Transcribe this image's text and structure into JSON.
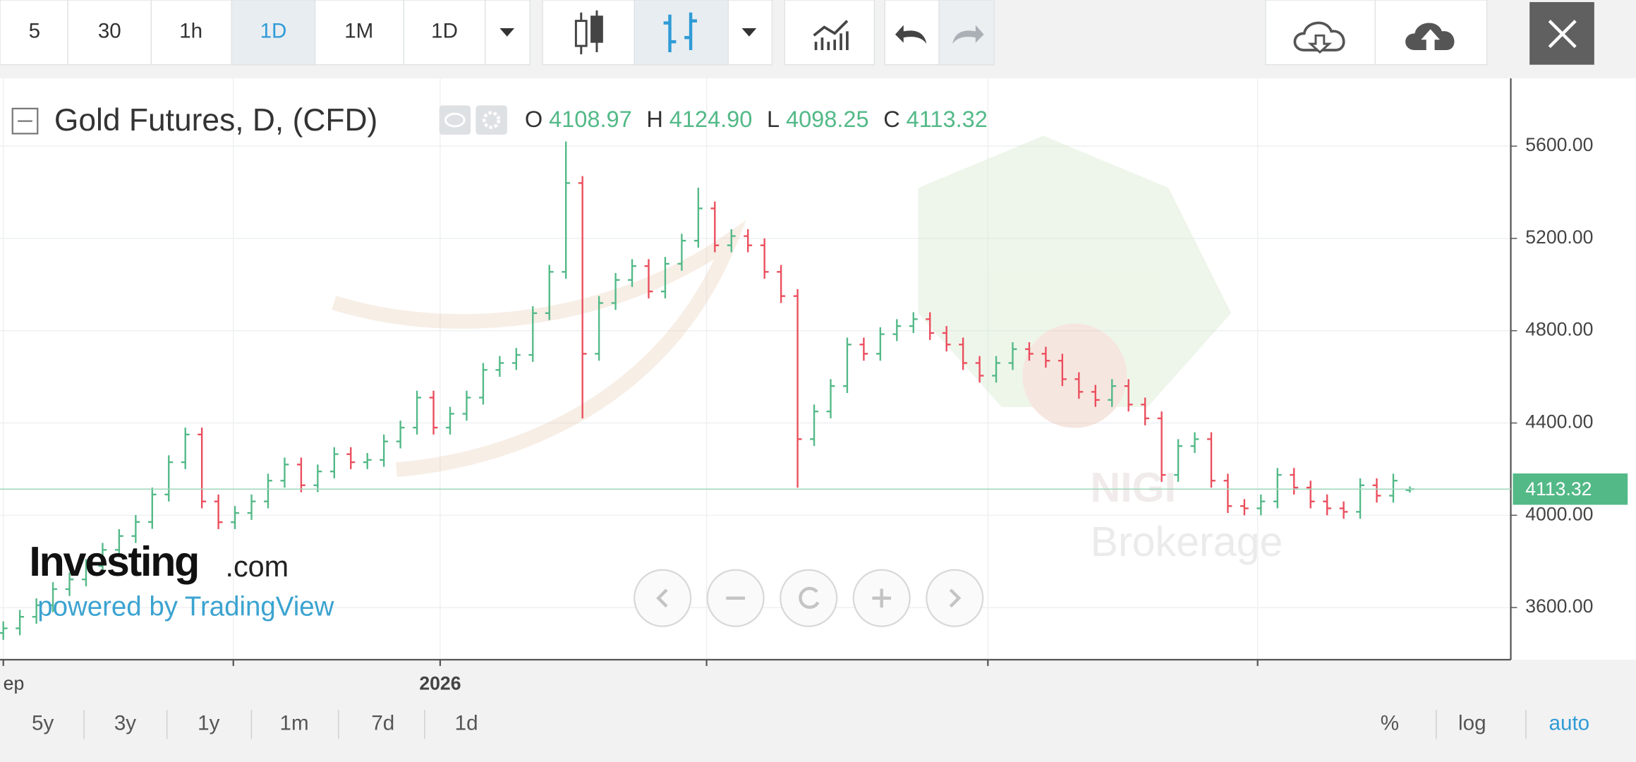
{
  "toolbar": {
    "intervals": [
      "5",
      "30",
      "1h",
      "1D",
      "1M",
      "1D"
    ],
    "active": 3
  },
  "chart_data": {
    "type": "ohlc",
    "title": "Gold Futures, D, (CFD)",
    "legend_letters": [
      "O",
      "H",
      "L",
      "C"
    ],
    "legend_values": [
      "4108.97",
      "4124.90",
      "4098.25",
      "4113.32"
    ],
    "last_price_label": "4113.32",
    "up_color": "#53b987",
    "down_color": "#eb4d5c",
    "open": [
      3490,
      3510,
      3560,
      3610,
      3680,
      3722,
      3780,
      3850,
      3910,
      3971,
      4090,
      4230,
      4350,
      4060,
      3970,
      4010,
      4060,
      4150,
      4220,
      4130,
      4190,
      4265,
      4230,
      4240,
      4320,
      4380,
      4510,
      4380,
      4440,
      4510,
      4630,
      4660,
      4695,
      4876,
      5055,
      5440,
      4700,
      4920,
      5020,
      5080,
      4970,
      5090,
      5190,
      5330,
      5170,
      5210,
      5170,
      5055,
      4950,
      4330,
      4450,
      4560,
      4740,
      4700,
      4785,
      4820,
      4850,
      4790,
      4740,
      4660,
      4605,
      4660,
      4720,
      4700,
      4670,
      4590,
      4535,
      4500,
      4560,
      4480,
      4420,
      4175,
      4300,
      4330,
      4150,
      4040,
      4030,
      4060,
      4175,
      4120,
      4060,
      4030,
      4015,
      4130,
      4085,
      4108.97
    ],
    "high": [
      3540,
      3590,
      3640,
      3710,
      3752,
      3810,
      3880,
      3940,
      4001,
      4120,
      4260,
      4380,
      4380,
      4090,
      4040,
      4090,
      4180,
      4250,
      4250,
      4220,
      4295,
      4295,
      4270,
      4350,
      4410,
      4540,
      4540,
      4470,
      4540,
      4660,
      4690,
      4725,
      4906,
      5085,
      5620,
      5470,
      4950,
      5050,
      5110,
      5110,
      5120,
      5220,
      5420,
      5360,
      5240,
      5240,
      5200,
      5085,
      4980,
      4480,
      4590,
      4770,
      4770,
      4815,
      4850,
      4880,
      4880,
      4820,
      4770,
      4690,
      4690,
      4750,
      4750,
      4730,
      4700,
      4620,
      4565,
      4590,
      4590,
      4510,
      4450,
      4330,
      4360,
      4360,
      4180,
      4070,
      4090,
      4205,
      4205,
      4150,
      4090,
      4060,
      4160,
      4160,
      4180,
      4124.9
    ],
    "low": [
      3460,
      3480,
      3530,
      3580,
      3650,
      3692,
      3750,
      3820,
      3880,
      3941,
      4060,
      4200,
      4030,
      3940,
      3940,
      3980,
      4030,
      4120,
      4100,
      4100,
      4160,
      4200,
      4200,
      4210,
      4290,
      4350,
      4350,
      4350,
      4410,
      4480,
      4600,
      4630,
      4665,
      4846,
      5025,
      4420,
      4670,
      4890,
      4990,
      4940,
      4940,
      5060,
      5160,
      5140,
      5140,
      5140,
      5025,
      4920,
      4120,
      4300,
      4420,
      4530,
      4670,
      4670,
      4755,
      4790,
      4760,
      4710,
      4630,
      4575,
      4575,
      4630,
      4670,
      4640,
      4560,
      4505,
      4470,
      4470,
      4450,
      4390,
      4145,
      4145,
      4270,
      4120,
      4010,
      4000,
      4000,
      4030,
      4090,
      4030,
      4000,
      3985,
      3985,
      4055,
      4055,
      4098.25
    ],
    "close": [
      3510,
      3560,
      3610,
      3680,
      3722,
      3780,
      3850,
      3910,
      3971,
      4090,
      4230,
      4350,
      4060,
      3970,
      4010,
      4060,
      4150,
      4220,
      4130,
      4190,
      4265,
      4230,
      4240,
      4320,
      4380,
      4510,
      4380,
      4440,
      4510,
      4630,
      4660,
      4695,
      4876,
      5055,
      5440,
      4700,
      4920,
      5020,
      5080,
      4970,
      5090,
      5190,
      5330,
      5170,
      5210,
      5170,
      5055,
      4950,
      4330,
      4450,
      4560,
      4740,
      4700,
      4785,
      4820,
      4850,
      4790,
      4740,
      4660,
      4605,
      4660,
      4720,
      4700,
      4670,
      4590,
      4535,
      4500,
      4560,
      4480,
      4420,
      4175,
      4300,
      4330,
      4150,
      4040,
      4030,
      4060,
      4175,
      4120,
      4060,
      4030,
      4015,
      4130,
      4085,
      4150,
      4113.32
    ],
    "xlim": [
      -0.2,
      91.1
    ],
    "xticks": [
      0,
      13.9,
      26.4,
      42.5,
      59.5,
      75.8
    ],
    "xtick_labels": [
      "ep",
      null,
      "2026",
      null,
      null,
      null
    ],
    "ylim": [
      3374,
      5894
    ],
    "yticks": [
      {
        "value": 3600,
        "label": "3600.00"
      },
      {
        "value": 4000,
        "label": "4000.00"
      },
      {
        "value": 4400,
        "label": "4400.00"
      },
      {
        "value": 4800,
        "label": "4800.00"
      },
      {
        "value": 5200,
        "label": "5200.00"
      },
      {
        "value": 5600,
        "label": "5600.00"
      }
    ],
    "grid": true
  },
  "watermark": {
    "brand": "Investing",
    "domain": ".com",
    "powered": "powered by TradingView",
    "broker_top": "NIGI",
    "broker_bottom": "Brokerage"
  },
  "ranges": [
    "5y",
    "3y",
    "1y",
    "1m",
    "7d",
    "1d"
  ],
  "scale_options": [
    "%",
    "log",
    "auto"
  ]
}
